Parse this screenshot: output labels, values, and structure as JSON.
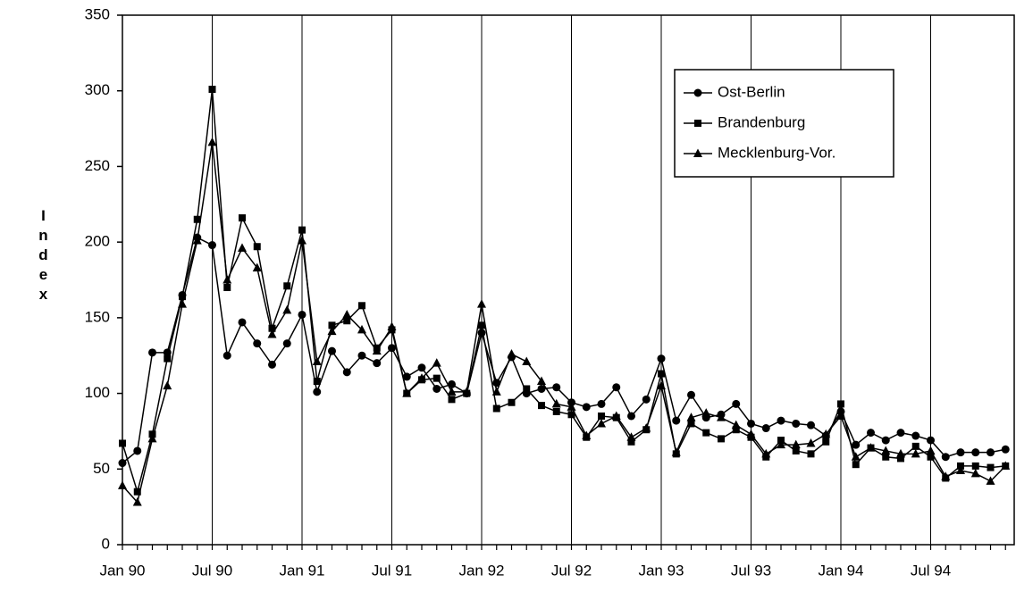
{
  "chart_data": {
    "type": "line",
    "y_label": "Index",
    "categories": [
      "Jan 90",
      null,
      null,
      null,
      null,
      null,
      "Jul 90",
      null,
      null,
      null,
      null,
      null,
      "Jan 91",
      null,
      null,
      null,
      null,
      null,
      "Jul 91",
      null,
      null,
      null,
      null,
      null,
      "Jan 92",
      null,
      null,
      null,
      null,
      null,
      "Jul 92",
      null,
      null,
      null,
      null,
      null,
      "Jan 93",
      null,
      null,
      null,
      null,
      null,
      "Jul 93",
      null,
      null,
      null,
      null,
      null,
      "Jan 94",
      null,
      null,
      null,
      null,
      null,
      "Jul 94",
      null,
      null,
      null,
      null,
      null
    ],
    "series": [
      {
        "name": "Ost-Berlin",
        "color": "#000000",
        "marker": "circle",
        "values": [
          54,
          62,
          127,
          127,
          165,
          203,
          198,
          125,
          147,
          133,
          119,
          133,
          152,
          101,
          128,
          114,
          125,
          120,
          130,
          111,
          117,
          103,
          106,
          100,
          140,
          107,
          124,
          100,
          103,
          104,
          94,
          91,
          93,
          104,
          85,
          96,
          123,
          82,
          99,
          84,
          86,
          93,
          80,
          77,
          82,
          80,
          79,
          72,
          88,
          66,
          74,
          69,
          74,
          72,
          69,
          58,
          61,
          61,
          61,
          63
        ]
      },
      {
        "name": "Brandenburg",
        "color": "#000000",
        "marker": "square",
        "values": [
          67,
          35,
          73,
          123,
          164,
          215,
          301,
          170,
          216,
          197,
          143,
          171,
          208,
          108,
          145,
          148,
          158,
          130,
          142,
          100,
          109,
          110,
          96,
          100,
          145,
          90,
          94,
          103,
          92,
          88,
          86,
          71,
          85,
          84,
          68,
          76,
          113,
          60,
          80,
          74,
          70,
          76,
          71,
          58,
          69,
          62,
          60,
          68,
          93,
          53,
          64,
          58,
          57,
          65,
          58,
          44,
          52,
          52,
          51,
          52
        ]
      },
      {
        "name": "Mecklenburg-Vor.",
        "color": "#000000",
        "marker": "triangle",
        "values": [
          39,
          28,
          70,
          105,
          159,
          201,
          266,
          175,
          196,
          183,
          139,
          155,
          201,
          121,
          141,
          152,
          142,
          128,
          144,
          100,
          110,
          120,
          101,
          101,
          159,
          101,
          126,
          121,
          108,
          93,
          91,
          72,
          80,
          85,
          71,
          77,
          105,
          61,
          84,
          87,
          84,
          79,
          73,
          60,
          66,
          66,
          67,
          73,
          85,
          58,
          64,
          62,
          60,
          60,
          62,
          45,
          49,
          47,
          42,
          52
        ]
      }
    ],
    "ylim": [
      0,
      350
    ],
    "yticks": [
      0,
      50,
      100,
      150,
      200,
      250,
      300,
      350
    ],
    "grid": true,
    "legend": "upper right"
  }
}
